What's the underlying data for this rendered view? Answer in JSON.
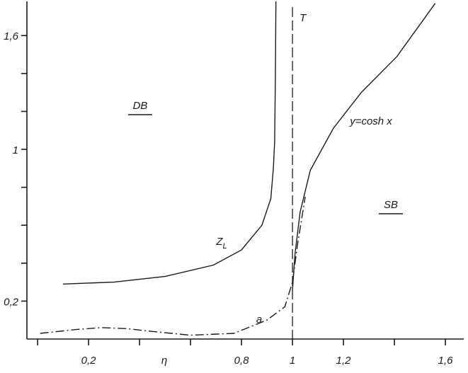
{
  "chart_data": {
    "type": "line",
    "xlabel": "η",
    "xlim": [
      -0.042,
      1.672
    ],
    "ylim": [
      0,
      1.78
    ],
    "xticks": [
      {
        "value": 0.2,
        "label": "0,2"
      },
      {
        "value": 0.8,
        "label": "0,8"
      },
      1,
      {
        "value": 1.2,
        "label": "1,2"
      },
      {
        "value": 1.6,
        "label": "1,6"
      }
    ],
    "x_minor_ticks": [
      0,
      0.4,
      0.6,
      1.4
    ],
    "yticks": [
      {
        "value": 0.2,
        "label": "0,2"
      },
      1,
      {
        "value": 1.6,
        "label": "1,6"
      }
    ],
    "y_minor_ticks": [
      0.4,
      0.6,
      0.8,
      1.2,
      1.4
    ],
    "vline": {
      "value": 1,
      "label": "T"
    },
    "series": [
      {
        "name": "Z",
        "subscript": "L",
        "color": "#1a1a1a",
        "dash": "solid",
        "x": [
          0.1,
          0.3,
          0.5,
          0.69,
          0.8,
          0.88,
          0.915,
          0.925,
          0.93,
          0.933,
          0.935
        ],
        "values": [
          0.29,
          0.3,
          0.33,
          0.39,
          0.47,
          0.6,
          0.74,
          0.9,
          1.04,
          1.4,
          1.78
        ]
      },
      {
        "name": "y=cosh x",
        "color": "#1a1a1a",
        "dash": "solid",
        "x": [
          1,
          1.01,
          1.03,
          1.07,
          1.16,
          1.27,
          1.41,
          1.56
        ],
        "values": [
          0.26,
          0.45,
          0.67,
          0.89,
          1.11,
          1.3,
          1.49,
          1.77
        ]
      },
      {
        "name": "a",
        "color": "#1a1a1a",
        "dash": "dashdot",
        "x": [
          0.01,
          0.15,
          0.25,
          0.35,
          0.45,
          0.6,
          0.77,
          0.9,
          0.97,
          1,
          1.02,
          1.05
        ],
        "values": [
          0.03,
          0.05,
          0.06,
          0.055,
          0.04,
          0.02,
          0.03,
          0.1,
          0.17,
          0.3,
          0.5,
          0.75
        ]
      }
    ],
    "regions": [
      {
        "label": "DB"
      },
      {
        "label": "SB"
      }
    ]
  }
}
